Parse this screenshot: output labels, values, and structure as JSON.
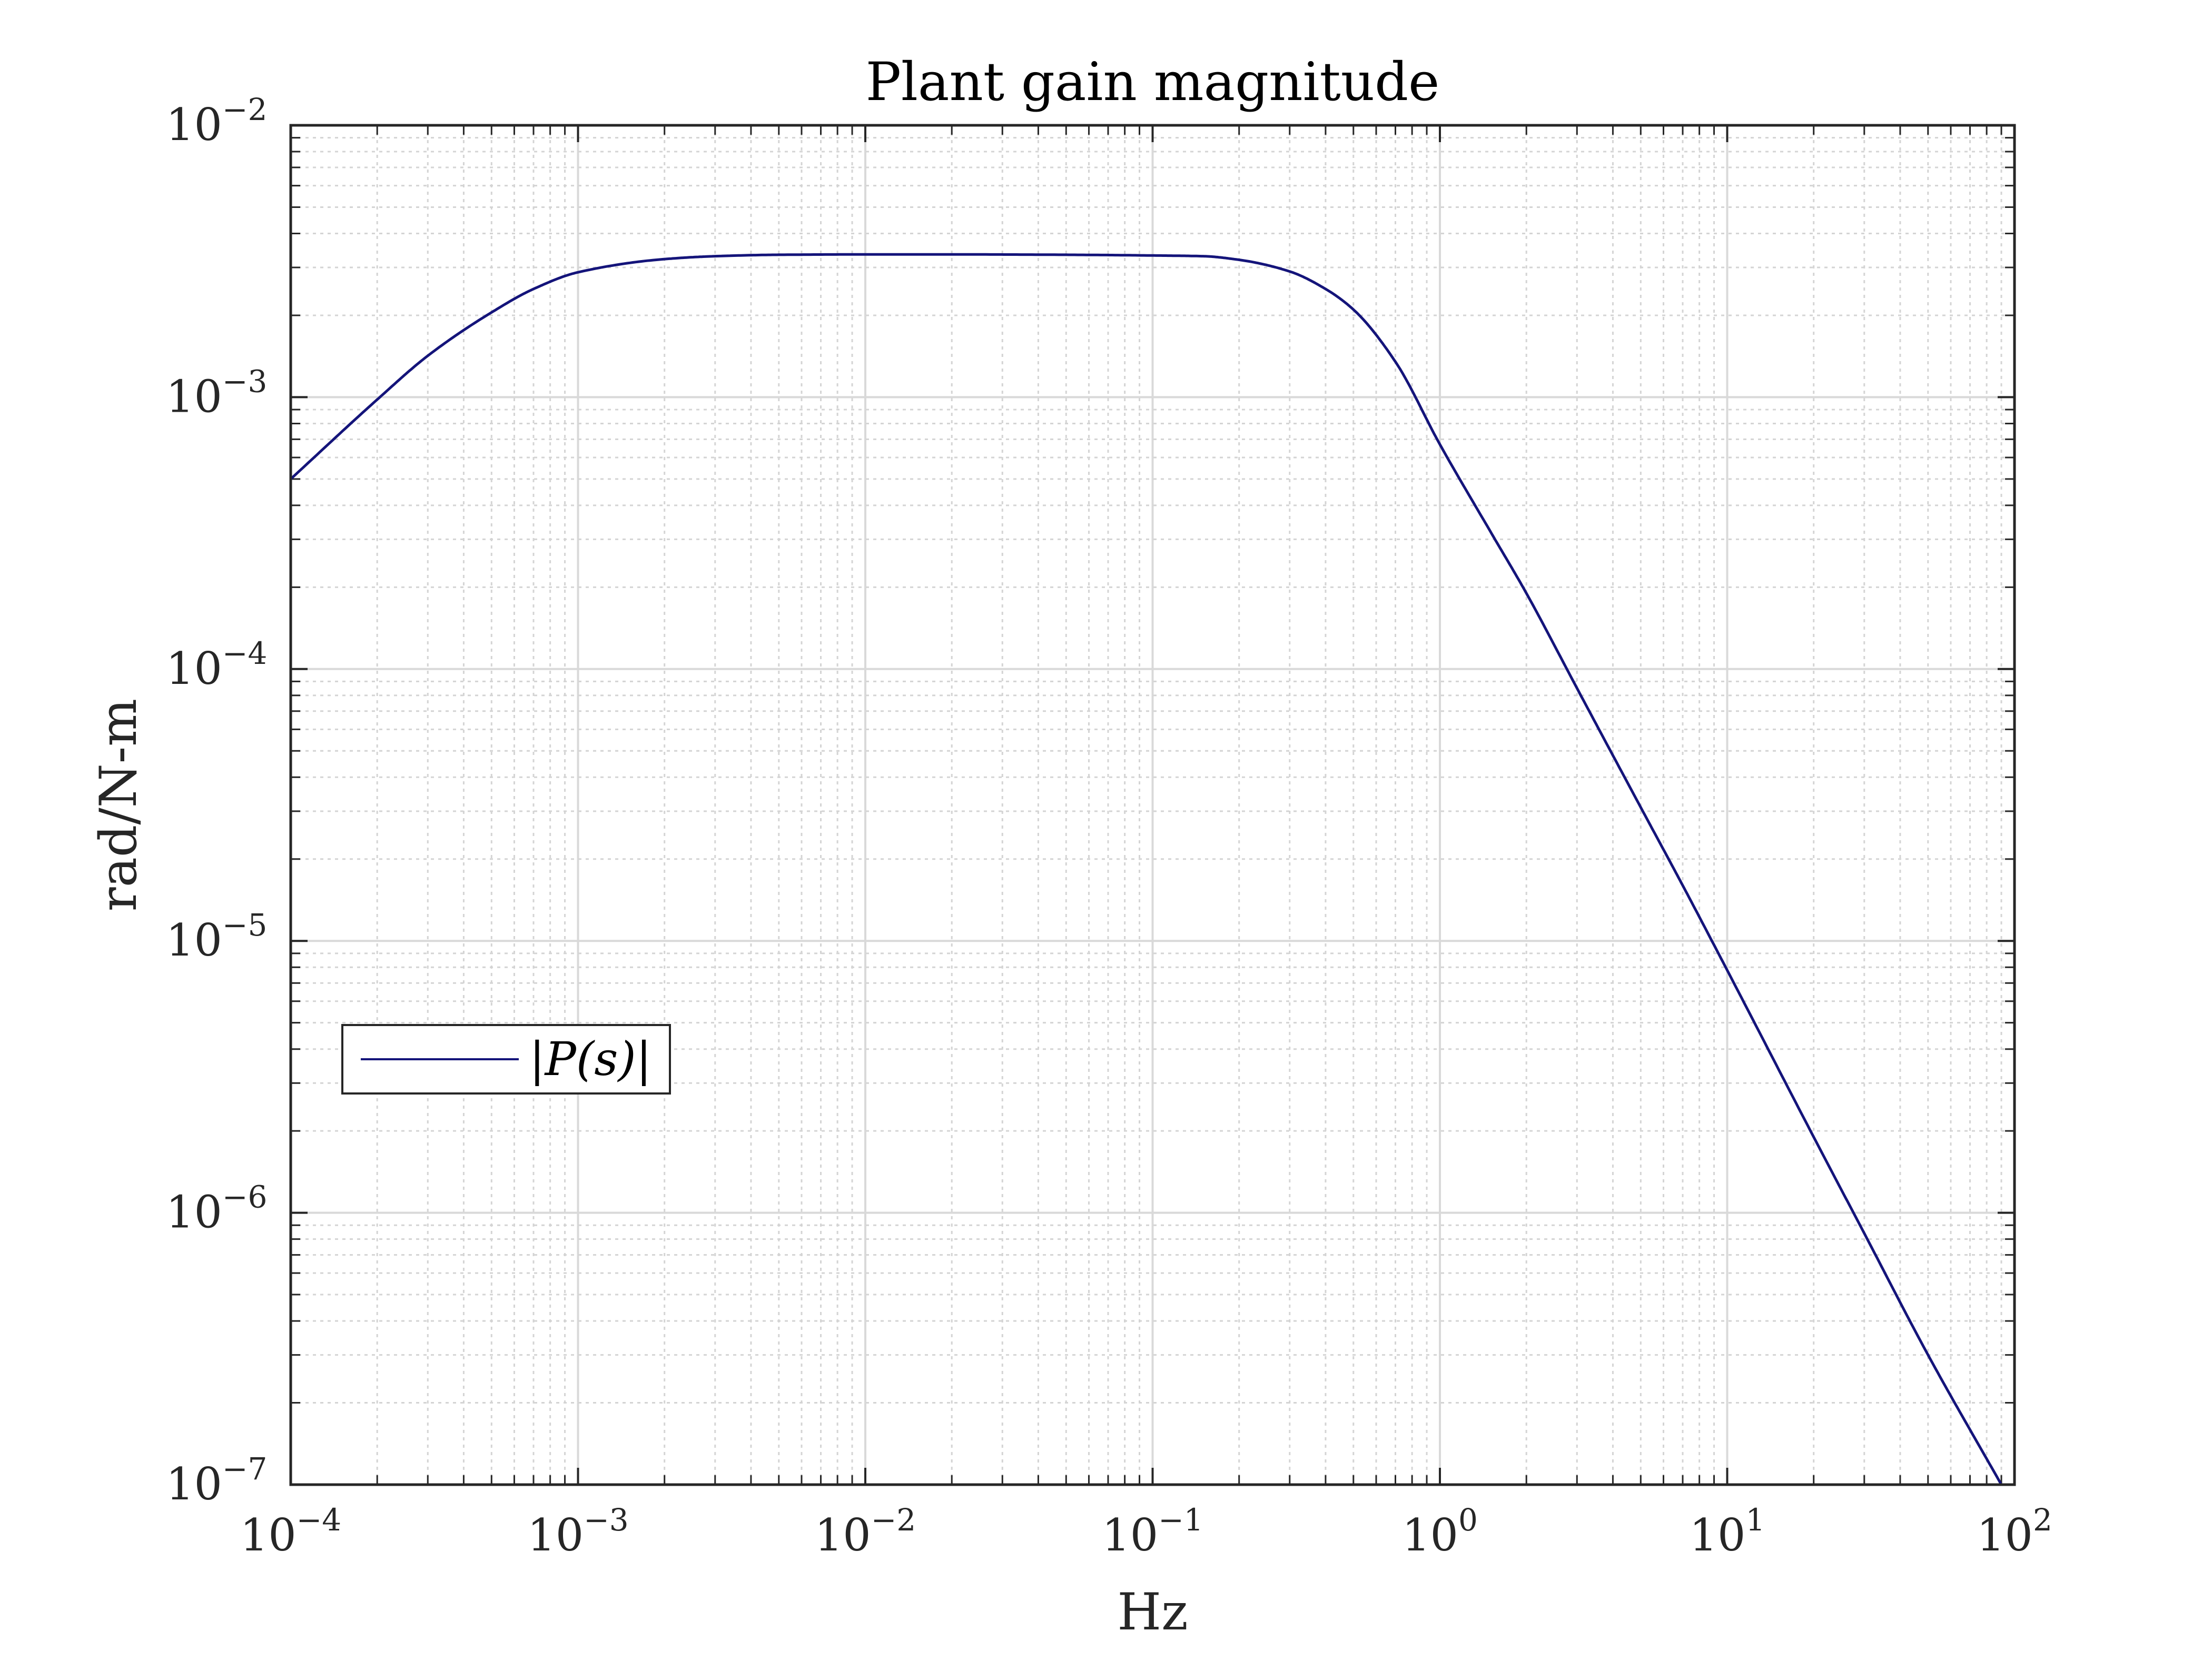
{
  "chart_data": {
    "type": "line",
    "title": "Plant gain magnitude",
    "xlabel": "Hz",
    "ylabel": "rad/N-m",
    "xscale": "log",
    "yscale": "log",
    "xlim": [
      0.0001,
      100
    ],
    "ylim": [
      1e-07,
      0.01
    ],
    "grid": true,
    "minor_grid": true,
    "legend": {
      "position": "left-middle",
      "entries": [
        "|P(s)|"
      ]
    },
    "x_ticks": [
      {
        "base": "10",
        "exp": "−4",
        "value": 0.0001
      },
      {
        "base": "10",
        "exp": "−3",
        "value": 0.001
      },
      {
        "base": "10",
        "exp": "−2",
        "value": 0.01
      },
      {
        "base": "10",
        "exp": "−1",
        "value": 0.1
      },
      {
        "base": "10",
        "exp": "0",
        "value": 1
      },
      {
        "base": "10",
        "exp": "1",
        "value": 10
      },
      {
        "base": "10",
        "exp": "2",
        "value": 100
      }
    ],
    "y_ticks": [
      {
        "base": "10",
        "exp": "−7",
        "value": 1e-07
      },
      {
        "base": "10",
        "exp": "−6",
        "value": 1e-06
      },
      {
        "base": "10",
        "exp": "−5",
        "value": 1e-05
      },
      {
        "base": "10",
        "exp": "−4",
        "value": 0.0001
      },
      {
        "base": "10",
        "exp": "−3",
        "value": 0.001
      },
      {
        "base": "10",
        "exp": "−2",
        "value": 0.01
      }
    ],
    "series": [
      {
        "name": "|P(s)|",
        "color": "#14147a",
        "x": [
          0.0001,
          0.0002,
          0.0003,
          0.0005,
          0.0007,
          0.001,
          0.002,
          0.003,
          0.005,
          0.01,
          0.02,
          0.05,
          0.1,
          0.15,
          0.2,
          0.3,
          0.4,
          0.5,
          0.7,
          1,
          1.5,
          2,
          3,
          5,
          7,
          10,
          20,
          30,
          50,
          90
        ],
        "y": [
          0.0005,
          0.00098,
          0.00142,
          0.00205,
          0.0025,
          0.00288,
          0.00322,
          0.0033,
          0.00334,
          0.00335,
          0.00335,
          0.00334,
          0.00332,
          0.0033,
          0.0032,
          0.0029,
          0.0025,
          0.0021,
          0.00135,
          0.00067,
          0.00032,
          0.00019,
          8.5e-05,
          3.1e-05,
          1.6e-05,
          7.8e-06,
          1.9e-06,
          8.4e-07,
          3e-07,
          1e-07
        ]
      }
    ]
  }
}
